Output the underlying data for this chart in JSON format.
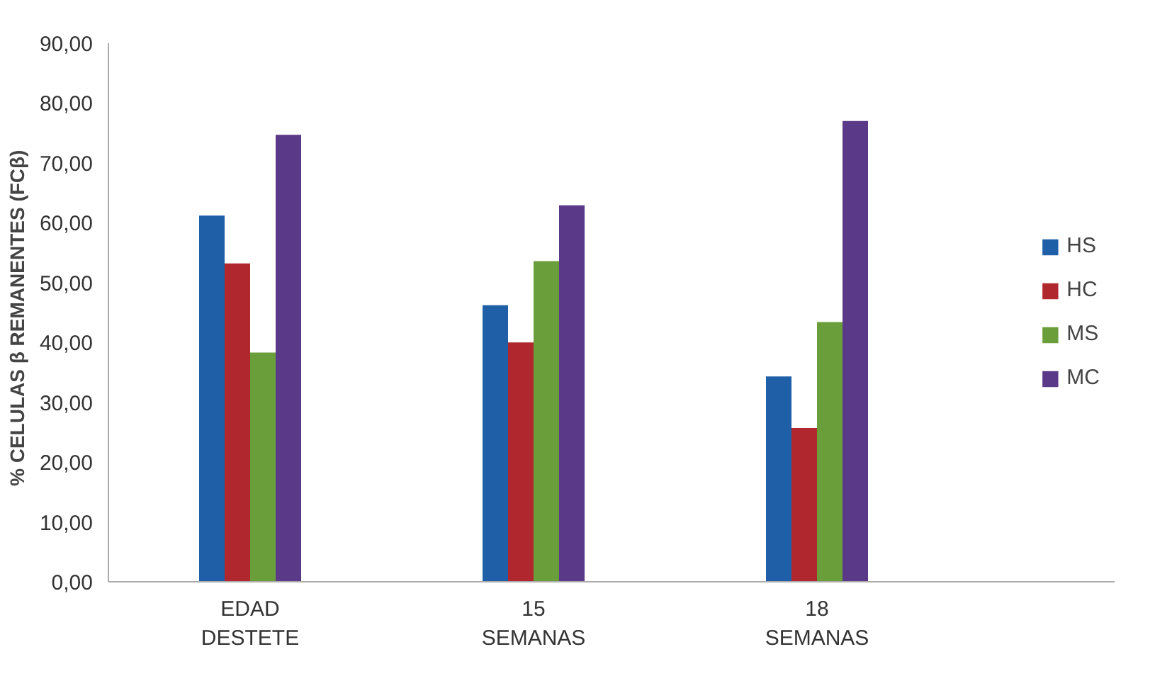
{
  "chart_data": {
    "type": "bar",
    "ylabel": "% CELULAS  β  REMANENTES (FCβ)",
    "categories": [
      "EDAD\nDESTETE",
      "15\nSEMANAS",
      "18\nSEMANAS"
    ],
    "series": [
      {
        "name": "HS",
        "color": "#1f5fa8",
        "values": [
          61.2,
          46.2,
          34.3
        ]
      },
      {
        "name": "HC",
        "color": "#b0282e",
        "values": [
          53.2,
          40.0,
          25.7
        ]
      },
      {
        "name": "MS",
        "color": "#6a9e3a",
        "values": [
          38.3,
          53.6,
          43.4
        ]
      },
      {
        "name": "MC",
        "color": "#5a3a88",
        "values": [
          74.7,
          62.9,
          77.0
        ]
      }
    ],
    "ylim": [
      0,
      90
    ],
    "yticks": [
      {
        "value": 0,
        "label": "0,00"
      },
      {
        "value": 10,
        "label": "10,00"
      },
      {
        "value": 20,
        "label": "20,00"
      },
      {
        "value": 30,
        "label": "30,00"
      },
      {
        "value": 40,
        "label": "40,00"
      },
      {
        "value": 50,
        "label": "50,00"
      },
      {
        "value": 60,
        "label": "60,00"
      },
      {
        "value": 70,
        "label": "70,00"
      },
      {
        "value": 80,
        "label": "80,00"
      },
      {
        "value": 90,
        "label": "90,00"
      }
    ],
    "grid": false,
    "legend": "right"
  }
}
